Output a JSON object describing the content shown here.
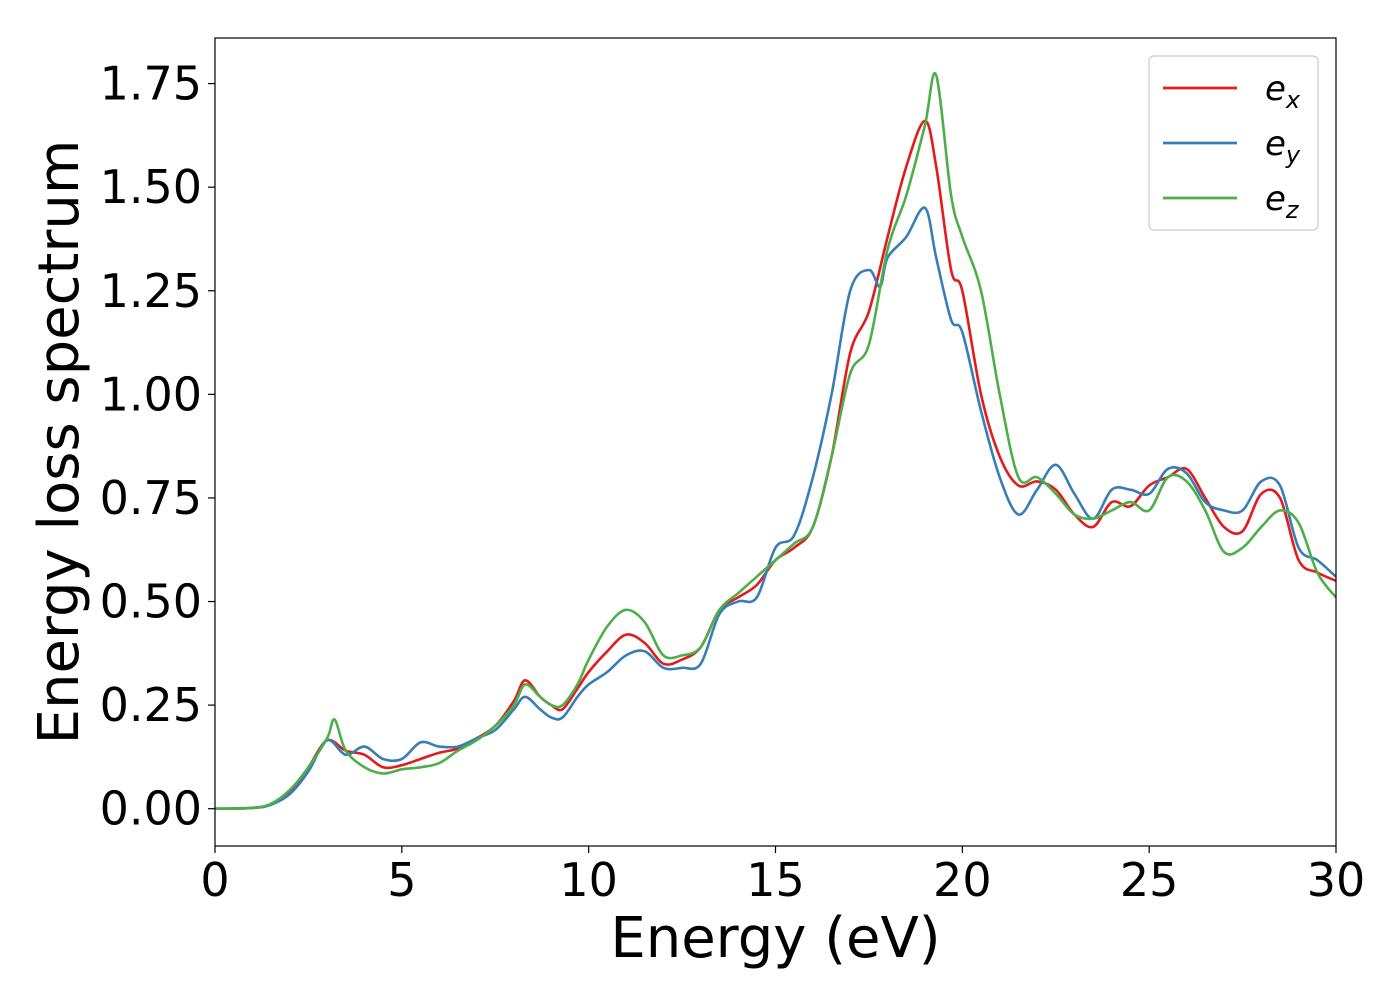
{
  "chart_data": {
    "type": "line",
    "xlabel": "Energy (eV)",
    "ylabel": "Energy loss spectrum",
    "xlim": [
      0,
      30
    ],
    "ylim": [
      -0.09,
      1.86
    ],
    "xticks": [
      0,
      5,
      10,
      15,
      20,
      25,
      30
    ],
    "xtick_labels": [
      "0",
      "5",
      "10",
      "15",
      "20",
      "25",
      "30"
    ],
    "yticks": [
      0.0,
      0.25,
      0.5,
      0.75,
      1.0,
      1.25,
      1.5,
      1.75
    ],
    "ytick_labels": [
      "0.00",
      "0.25",
      "0.50",
      "0.75",
      "1.00",
      "1.25",
      "1.50",
      "1.75"
    ],
    "grid": false,
    "legend_position": "top-right",
    "series": [
      {
        "name": "e_x",
        "label_base": "e",
        "label_sub": "x",
        "color": "#e41a1c",
        "x": [
          0,
          1,
          1.5,
          2,
          2.5,
          3,
          3.5,
          4,
          4.5,
          5,
          5.5,
          6,
          6.5,
          7,
          7.5,
          8,
          8.3,
          8.7,
          9,
          9.3,
          9.7,
          10,
          10.5,
          11,
          11.5,
          12,
          12.5,
          13,
          13.5,
          14,
          14.5,
          15,
          15.5,
          16,
          16.5,
          17,
          17.5,
          18,
          18.5,
          19,
          19.3,
          19.7,
          20,
          20.5,
          21,
          21.5,
          22,
          22.5,
          23,
          23.5,
          24,
          24.5,
          25,
          25.5,
          26,
          26.5,
          27,
          27.5,
          28,
          28.5,
          29,
          29.5,
          30
        ],
        "y": [
          0,
          0.002,
          0.01,
          0.04,
          0.1,
          0.165,
          0.14,
          0.13,
          0.1,
          0.105,
          0.12,
          0.135,
          0.145,
          0.17,
          0.2,
          0.26,
          0.31,
          0.27,
          0.25,
          0.24,
          0.29,
          0.33,
          0.38,
          0.42,
          0.4,
          0.35,
          0.36,
          0.39,
          0.48,
          0.51,
          0.54,
          0.6,
          0.63,
          0.68,
          0.85,
          1.1,
          1.2,
          1.38,
          1.55,
          1.66,
          1.55,
          1.3,
          1.25,
          1.0,
          0.85,
          0.78,
          0.79,
          0.77,
          0.71,
          0.68,
          0.74,
          0.73,
          0.78,
          0.8,
          0.82,
          0.75,
          0.68,
          0.67,
          0.76,
          0.75,
          0.6,
          0.57,
          0.55
        ]
      },
      {
        "name": "e_y",
        "label_base": "e",
        "label_sub": "y",
        "color": "#377eb8",
        "x": [
          0,
          1,
          1.5,
          2,
          2.5,
          3,
          3.5,
          4,
          4.5,
          5,
          5.5,
          6,
          6.5,
          7,
          7.5,
          8,
          8.3,
          8.7,
          9,
          9.3,
          9.7,
          10,
          10.5,
          11,
          11.5,
          12,
          12.5,
          13,
          13.5,
          14,
          14.5,
          15,
          15.5,
          16,
          16.5,
          17,
          17.5,
          17.8,
          18,
          18.5,
          19,
          19.3,
          19.7,
          20,
          20.5,
          21,
          21.5,
          22,
          22.5,
          23,
          23.5,
          24,
          24.5,
          25,
          25.5,
          26,
          26.5,
          27,
          27.5,
          28,
          28.5,
          29,
          29.5,
          30
        ],
        "y": [
          0,
          0.002,
          0.01,
          0.035,
          0.09,
          0.165,
          0.13,
          0.15,
          0.12,
          0.12,
          0.16,
          0.15,
          0.15,
          0.17,
          0.19,
          0.24,
          0.27,
          0.24,
          0.22,
          0.22,
          0.27,
          0.3,
          0.33,
          0.37,
          0.38,
          0.34,
          0.34,
          0.35,
          0.47,
          0.5,
          0.51,
          0.63,
          0.66,
          0.8,
          1.0,
          1.25,
          1.3,
          1.26,
          1.33,
          1.38,
          1.45,
          1.33,
          1.18,
          1.15,
          0.96,
          0.8,
          0.71,
          0.77,
          0.83,
          0.76,
          0.7,
          0.77,
          0.77,
          0.76,
          0.82,
          0.81,
          0.74,
          0.72,
          0.72,
          0.79,
          0.78,
          0.63,
          0.6,
          0.56
        ]
      },
      {
        "name": "e_z",
        "label_base": "e",
        "label_sub": "z",
        "color": "#4daf4a",
        "x": [
          0,
          1,
          1.5,
          2,
          2.5,
          3,
          3.2,
          3.5,
          4,
          4.5,
          5,
          5.5,
          6,
          6.5,
          7,
          7.5,
          8,
          8.3,
          8.7,
          9,
          9.3,
          9.7,
          10,
          10.5,
          11,
          11.5,
          12,
          12.5,
          13,
          13.5,
          14,
          14.5,
          15,
          15.5,
          16,
          16.5,
          17,
          17.5,
          18,
          18.5,
          19,
          19.3,
          19.7,
          20,
          20.5,
          21,
          21.5,
          22,
          22.5,
          23,
          23.5,
          24,
          24.5,
          25,
          25.5,
          26,
          26.5,
          27,
          27.5,
          28,
          28.5,
          29,
          29.5,
          30
        ],
        "y": [
          0,
          0.002,
          0.012,
          0.045,
          0.1,
          0.17,
          0.215,
          0.14,
          0.1,
          0.085,
          0.095,
          0.1,
          0.11,
          0.14,
          0.165,
          0.2,
          0.25,
          0.3,
          0.27,
          0.25,
          0.25,
          0.3,
          0.36,
          0.44,
          0.48,
          0.45,
          0.37,
          0.37,
          0.39,
          0.48,
          0.52,
          0.56,
          0.6,
          0.64,
          0.68,
          0.85,
          1.05,
          1.12,
          1.35,
          1.48,
          1.65,
          1.77,
          1.48,
          1.38,
          1.25,
          1.0,
          0.8,
          0.8,
          0.76,
          0.71,
          0.7,
          0.72,
          0.74,
          0.72,
          0.8,
          0.79,
          0.72,
          0.62,
          0.63,
          0.68,
          0.72,
          0.69,
          0.57,
          0.51
        ]
      }
    ]
  }
}
